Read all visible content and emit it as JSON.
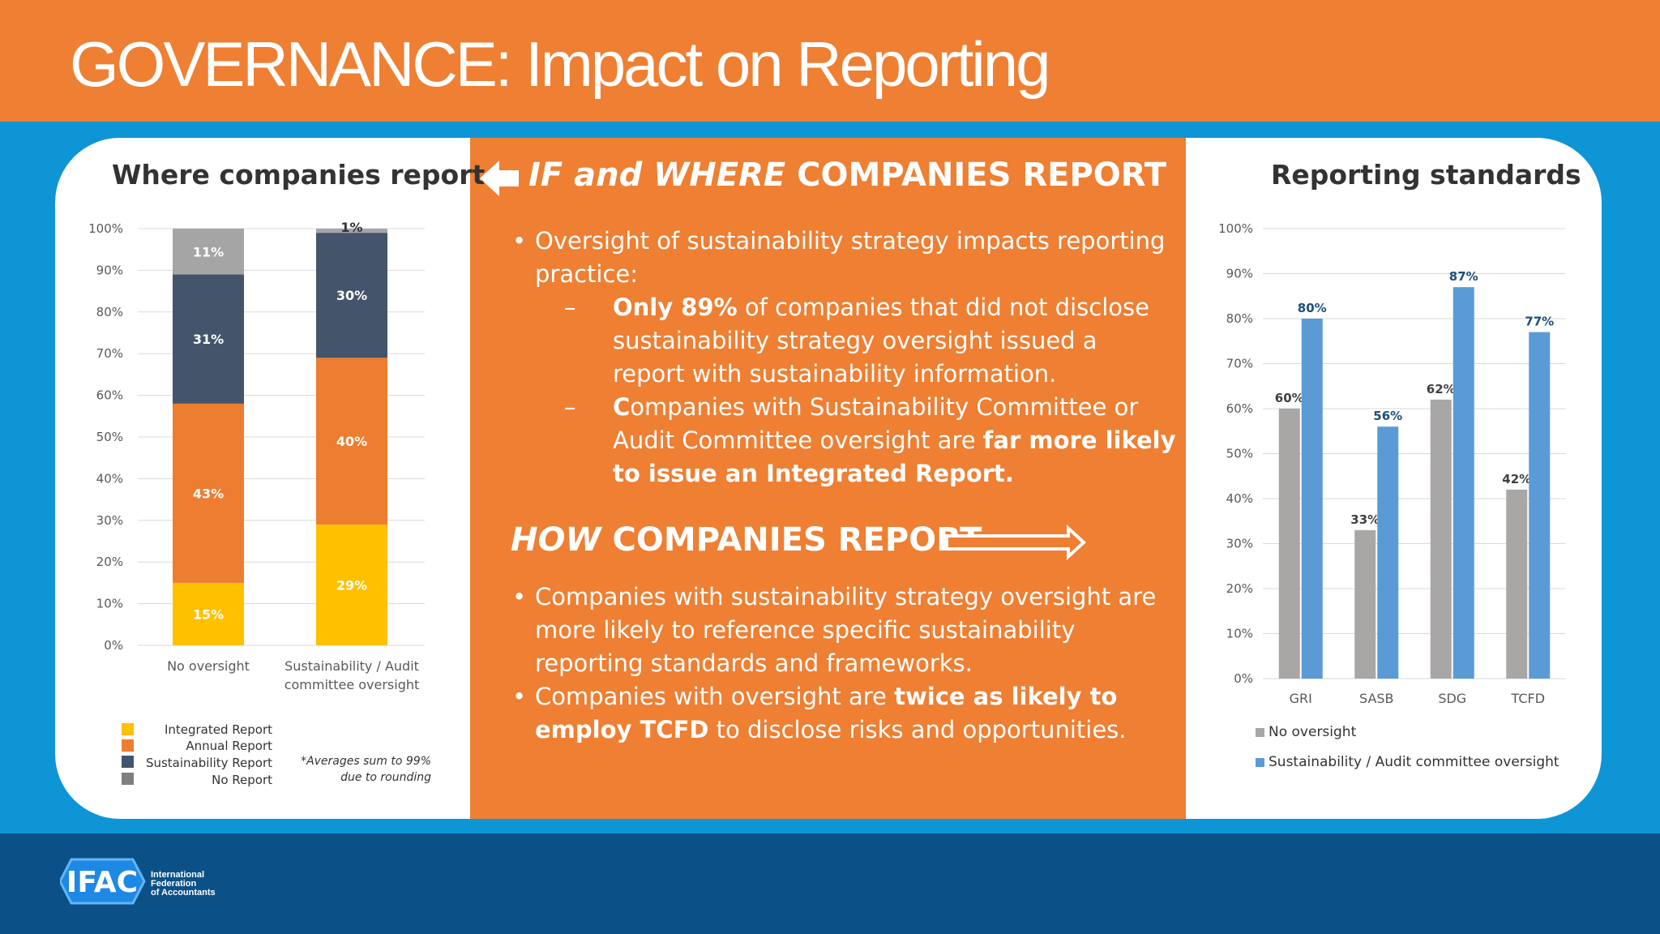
{
  "slide": {
    "title": "GOVERNANCE:  Impact on Reporting"
  },
  "colors": {
    "orange": "#ee7f33",
    "blue": "#0e95d6",
    "navy": "#0b5188",
    "integrated": "#ffc000",
    "annual": "#ed7d31",
    "sustainability": "#44546a",
    "noreport": "#a5a5a5",
    "gray_bar": "#a9a6a6",
    "blue_bar": "#5b9bd5"
  },
  "left_chart": {
    "title": "Where companies report",
    "footnote_line1": "*Averages sum to 99%",
    "footnote_line2": "due to rounding"
  },
  "middle": {
    "heading1_italic": "IF and WHERE",
    "heading1_rest": " COMPANIES REPORT",
    "bullet1": "Oversight of sustainability strategy impacts reporting practice:",
    "sub1_bold": "Only 89%",
    "sub1_rest": " of companies that did not disclose sustainability strategy oversight issued a report with sustainability information.",
    "sub2_bold_c": "C",
    "sub2_mid": "ompanies with Sustainability Committee or Audit Committee oversight are ",
    "sub2_bold": "far more likely to issue an Integrated Report.",
    "heading2_italic": "HOW",
    "heading2_rest": " COMPANIES REPORT",
    "bullet2": "Companies with sustainability strategy oversight are more likely to reference specific sustainability reporting standards and frameworks.",
    "bullet3_a": "Companies with oversight are ",
    "bullet3_bold": "twice as likely to employ TCFD",
    "bullet3_b": " to disclose risks and opportunities."
  },
  "right_chart": {
    "title": "Reporting standards"
  },
  "chart_data": [
    {
      "type": "bar",
      "stacked": true,
      "categories": [
        "No oversight",
        "Sustainability / Audit committee oversight"
      ],
      "series": [
        {
          "name": "Integrated Report",
          "values": [
            15,
            29
          ]
        },
        {
          "name": "Annual Report",
          "values": [
            43,
            40
          ]
        },
        {
          "name": "Sustainability Report",
          "values": [
            31,
            30
          ]
        },
        {
          "name": "No Report",
          "values": [
            11,
            1
          ]
        }
      ],
      "data_labels": [
        [
          "15%",
          "43%",
          "31%",
          "11%"
        ],
        [
          "29%",
          "40%",
          "30%",
          "1%"
        ]
      ],
      "ylim": [
        0,
        100
      ],
      "yticks": [
        "0%",
        "10%",
        "20%",
        "30%",
        "40%",
        "50%",
        "60%",
        "70%",
        "80%",
        "90%",
        "100%"
      ],
      "grid": true,
      "legend_position": "bottom-left"
    },
    {
      "type": "bar",
      "categories": [
        "GRI",
        "SASB",
        "SDG",
        "TCFD"
      ],
      "series": [
        {
          "name": "No oversight",
          "values": [
            60,
            33,
            62,
            42
          ]
        },
        {
          "name": "Sustainability / Audit committee oversight",
          "values": [
            80,
            56,
            87,
            77
          ]
        }
      ],
      "ylim": [
        0,
        100
      ],
      "yticks": [
        "0%",
        "10%",
        "20%",
        "30%",
        "40%",
        "50%",
        "60%",
        "70%",
        "80%",
        "90%",
        "100%"
      ],
      "grid": true,
      "legend_position": "bottom"
    }
  ],
  "logo": {
    "mark": "IFAC",
    "line1": "International",
    "line2": "Federation",
    "line3": "of Accountants"
  }
}
